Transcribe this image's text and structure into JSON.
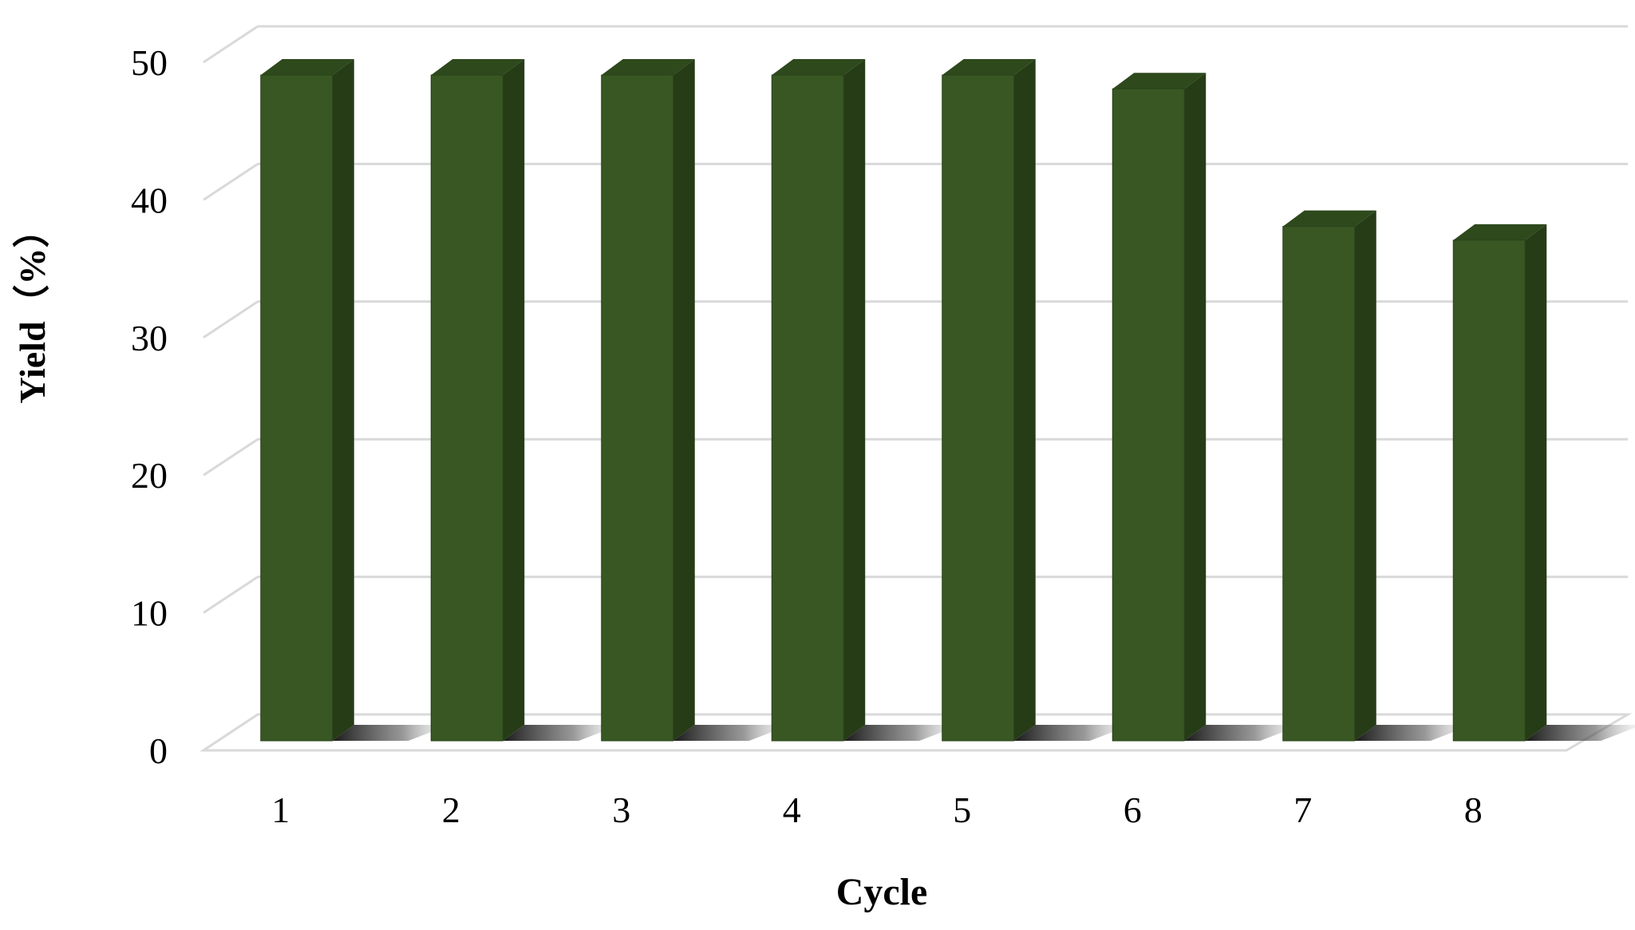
{
  "chart_data": {
    "type": "bar",
    "style": "3d-column",
    "title": "",
    "xlabel": "Cycle",
    "ylabel": "Yield（%）",
    "categories": [
      "1",
      "2",
      "3",
      "4",
      "5",
      "6",
      "7",
      "8"
    ],
    "values": [
      50,
      50,
      50,
      50,
      50,
      49,
      39,
      38
    ],
    "ylim": [
      0,
      50
    ],
    "yticks": [
      "0",
      "10",
      "20",
      "30",
      "40",
      "50"
    ],
    "grid": true,
    "legend": "none",
    "colors": {
      "bar_front": "#385723",
      "bar_side": "#263c17",
      "bar_top": "#2e491c",
      "gridline": "#d9d9d9",
      "text": "#000000"
    }
  }
}
